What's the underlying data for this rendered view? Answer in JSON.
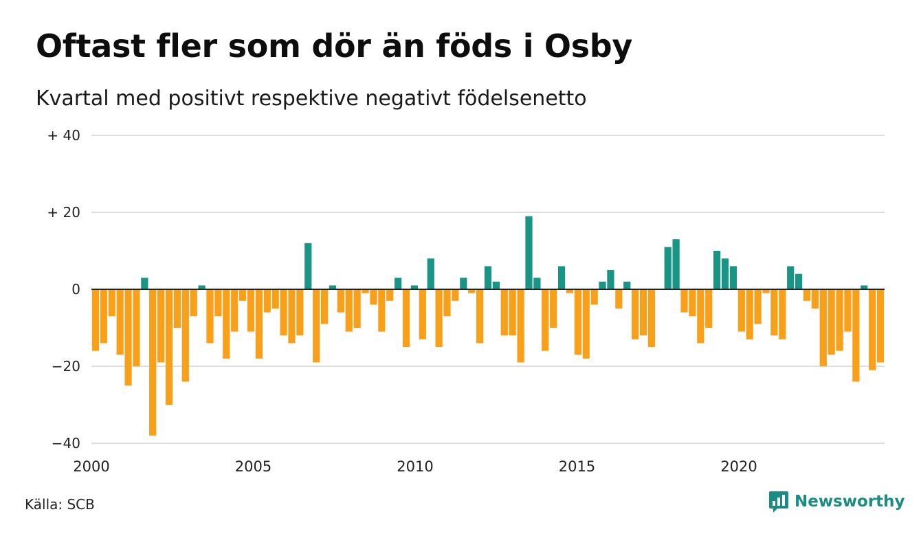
{
  "chart_data": {
    "type": "bar",
    "title": "Oftast fler som dör än föds i Osby",
    "subtitle": "Kvartal med positivt respektive negativt födelsenetto",
    "x_tick_labels": [
      "2000",
      "2005",
      "2010",
      "2015",
      "2020"
    ],
    "x_start_year": 2000,
    "x_end_year": 2024.5,
    "y_tick_values": [
      40,
      20,
      0,
      -20,
      -40
    ],
    "y_tick_labels": [
      "+ 40",
      "+ 20",
      "0",
      "−20",
      "−40"
    ],
    "ylim": [
      -40,
      40
    ],
    "grid": true,
    "positive_color": "#1a9484",
    "negative_color": "#f9a01b",
    "series": [
      {
        "values": [
          -16,
          -14,
          -7,
          -17,
          -25,
          -20,
          3,
          -38,
          -19,
          -30,
          -10,
          -24,
          -7,
          1,
          -14,
          -7,
          -18,
          -11,
          -3,
          -11,
          -18,
          -6,
          -5,
          -12,
          -14,
          -12,
          12,
          -19,
          -9,
          1,
          -6,
          -11,
          -10,
          -1,
          -4,
          -11,
          -3,
          3,
          -15,
          1,
          -13,
          8,
          -15,
          -7,
          -3,
          3,
          -1,
          -14,
          6,
          2,
          -12,
          -12,
          -19,
          19,
          3,
          -16,
          -10,
          6,
          -1,
          -17,
          -18,
          -4,
          2,
          5,
          -5,
          2,
          -13,
          -12,
          -15,
          0,
          11,
          13,
          -6,
          -7,
          -14,
          -10,
          10,
          8,
          6,
          -11,
          -13,
          -9,
          -1,
          -12,
          -13,
          6,
          4,
          -3,
          -5,
          -20,
          -17,
          -16,
          -11,
          -24,
          1,
          -21,
          -19
        ]
      }
    ]
  },
  "footer": {
    "source": "Källa: SCB",
    "brand": "Newsworthy"
  }
}
